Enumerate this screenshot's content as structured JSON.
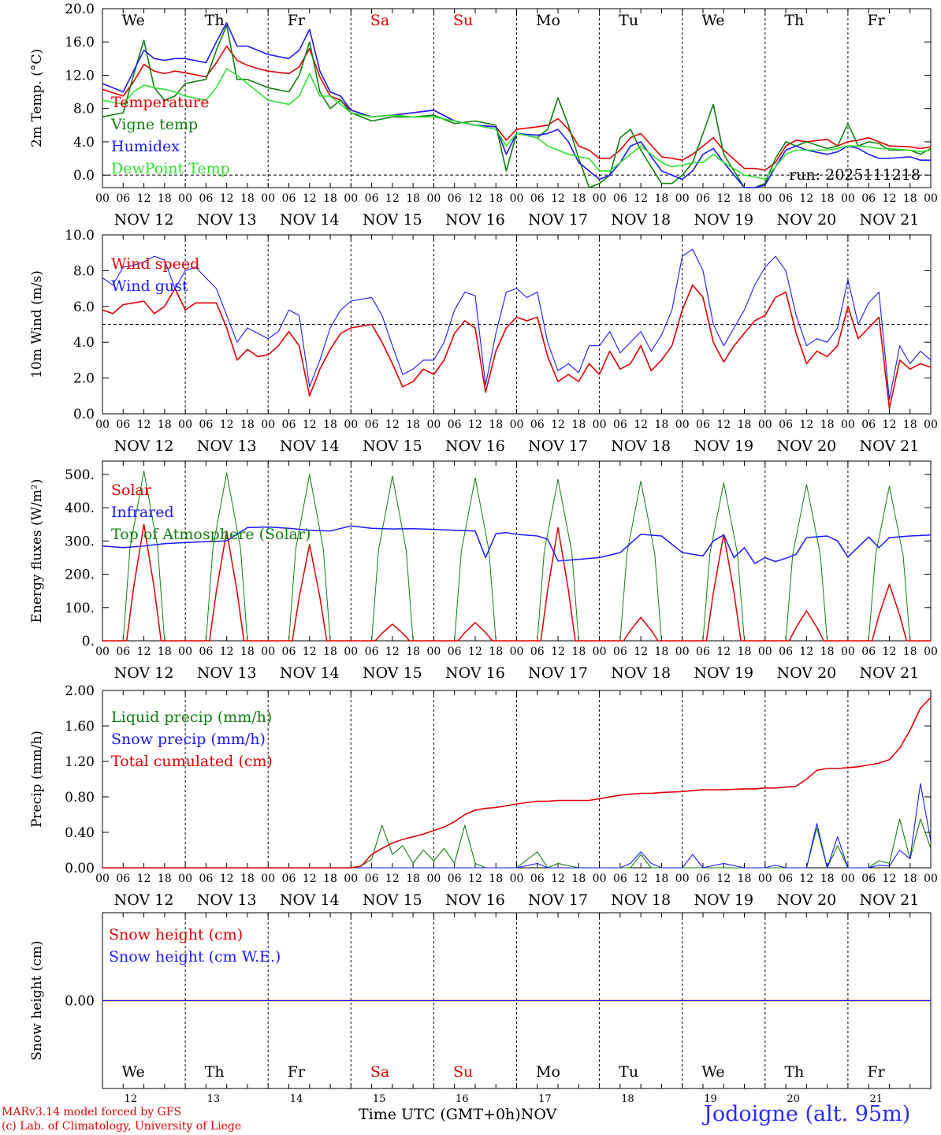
{
  "colors": {
    "red": "#e00000",
    "green": "#108010",
    "blue": "#1a1aff",
    "lightgreen": "#30e030",
    "black": "#000000"
  },
  "days": [
    "We",
    "Th",
    "Fr",
    "Sa",
    "Su",
    "Mo",
    "Tu",
    "We",
    "Th",
    "Fr"
  ],
  "weekend_days": [
    "Sa",
    "Su"
  ],
  "date_labels": [
    "NOV 12",
    "NOV 13",
    "NOV 14",
    "NOV 15",
    "NOV 16",
    "NOV 17",
    "NOV 18",
    "NOV 19",
    "NOV 20",
    "NOV 21"
  ],
  "hour_labels": [
    "00",
    "06",
    "12",
    "18"
  ],
  "day_numbers": [
    "12",
    "13",
    "14",
    "15",
    "16",
    "17",
    "18",
    "19",
    "20",
    "21"
  ],
  "footer": {
    "credit_line1": "MARv3.14 model forced by GFS",
    "credit_line2": "(c) Lab. of Climatology, University of Liege",
    "x_title": "Time UTC (GMT+0h)",
    "month": "NOV",
    "station": "Jodoigne (alt. 95m)"
  },
  "chart_data": [
    {
      "type": "line",
      "ylabel": "2m Temp. (°C)",
      "ylim": [
        -1.5,
        20.0
      ],
      "yticks": [
        0.0,
        4.0,
        8.0,
        12.0,
        16.0,
        20.0
      ],
      "ytick_labels": [
        "0.0",
        "4.0",
        "8.0",
        "12.0",
        "16.0",
        "20.0"
      ],
      "ref_line": 0.0,
      "annotation": "run: 2025111218",
      "x_hours": [
        0,
        6,
        9,
        12,
        15,
        18,
        21,
        24,
        30,
        33,
        36,
        39,
        42,
        45,
        48,
        54,
        57,
        60,
        63,
        66,
        69,
        72,
        78,
        84,
        90,
        96,
        102,
        108,
        114,
        117,
        120,
        126,
        129,
        132,
        135,
        138,
        141,
        144,
        147,
        150,
        153,
        156,
        162,
        165,
        168,
        171,
        174,
        177,
        180,
        186,
        189,
        192,
        195,
        198,
        201,
        204,
        210,
        213,
        216,
        219,
        222,
        225,
        228,
        234,
        237,
        240
      ],
      "series": [
        {
          "name": "Temperature",
          "color": "red",
          "values": [
            10.3,
            9.5,
            11.2,
            13.3,
            12.5,
            12.2,
            12.5,
            12.3,
            11.8,
            13.5,
            15.5,
            13.8,
            13.2,
            12.8,
            12.5,
            12.2,
            13.0,
            15.2,
            11.8,
            9.5,
            9.0,
            7.8,
            7.0,
            7.2,
            7.5,
            7.8,
            6.5,
            6.0,
            5.8,
            4.2,
            5.5,
            5.8,
            6.0,
            6.8,
            5.5,
            3.5,
            3.0,
            2.0,
            2.0,
            3.0,
            4.5,
            5.0,
            2.2,
            2.0,
            1.8,
            2.5,
            3.5,
            4.5,
            3.0,
            0.8,
            0.8,
            0.6,
            1.5,
            3.5,
            4.2,
            4.0,
            4.3,
            3.5,
            4.0,
            4.2,
            4.5,
            4.0,
            3.5,
            3.4,
            3.2,
            3.4
          ]
        },
        {
          "name": "Vigne temp",
          "color": "green",
          "values": [
            7.0,
            7.5,
            12.0,
            16.2,
            10.5,
            9.0,
            9.5,
            11.0,
            11.5,
            15.0,
            18.0,
            11.5,
            11.5,
            11.0,
            10.5,
            10.0,
            12.0,
            16.0,
            10.0,
            8.0,
            9.0,
            7.5,
            6.5,
            7.0,
            7.0,
            7.2,
            6.2,
            6.5,
            6.0,
            0.5,
            5.0,
            4.5,
            5.5,
            9.3,
            6.0,
            2.0,
            -1.5,
            -1.0,
            0.0,
            4.5,
            5.5,
            3.0,
            -1.0,
            -1.0,
            0.0,
            1.5,
            5.0,
            8.5,
            2.5,
            -1.5,
            -1.5,
            -1.0,
            2.0,
            4.0,
            3.5,
            4.0,
            3.2,
            3.5,
            6.2,
            3.5,
            4.0,
            3.8,
            3.0,
            3.0,
            2.5,
            3.2
          ]
        },
        {
          "name": "Humidex",
          "color": "blue",
          "values": [
            11.0,
            10.0,
            12.5,
            15.0,
            14.0,
            13.8,
            14.0,
            14.0,
            13.5,
            16.0,
            18.3,
            15.5,
            15.5,
            15.0,
            14.5,
            14.0,
            15.0,
            17.5,
            12.5,
            10.0,
            9.5,
            7.8,
            7.0,
            7.2,
            7.5,
            7.8,
            6.5,
            6.0,
            5.8,
            2.5,
            5.0,
            4.8,
            5.0,
            5.5,
            4.0,
            1.5,
            0.5,
            -0.5,
            0.0,
            1.5,
            3.5,
            4.0,
            0.5,
            0.0,
            -0.5,
            0.5,
            2.5,
            3.2,
            1.5,
            -1.5,
            -1.5,
            -1.2,
            1.0,
            3.0,
            3.5,
            3.0,
            2.5,
            2.8,
            3.5,
            3.2,
            2.5,
            2.0,
            2.0,
            2.2,
            1.8,
            1.8
          ]
        },
        {
          "name": "DewPoint Temp",
          "color": "lightgreen",
          "values": [
            9.0,
            8.5,
            10.0,
            10.8,
            10.5,
            10.3,
            10.0,
            9.5,
            9.0,
            10.5,
            12.8,
            12.0,
            11.0,
            10.0,
            9.0,
            8.5,
            9.5,
            12.2,
            9.5,
            9.5,
            8.5,
            7.5,
            7.0,
            7.2,
            7.0,
            7.0,
            6.5,
            6.0,
            5.5,
            3.5,
            5.0,
            4.5,
            3.5,
            3.0,
            2.5,
            2.2,
            2.0,
            0.5,
            0.5,
            1.5,
            2.5,
            3.5,
            1.5,
            1.0,
            1.2,
            1.5,
            1.5,
            2.5,
            1.5,
            0.0,
            -0.2,
            -0.5,
            1.0,
            2.5,
            3.0,
            3.0,
            3.0,
            3.2,
            3.5,
            3.5,
            3.4,
            3.2,
            3.2,
            3.0,
            2.8,
            3.0
          ]
        }
      ]
    },
    {
      "type": "line",
      "ylabel": "10m Wind (m/s)",
      "ylim": [
        0.0,
        10.0
      ],
      "yticks": [
        0.0,
        2.0,
        4.0,
        6.0,
        8.0,
        10.0
      ],
      "ytick_labels": [
        "0.0",
        "2.0",
        "4.0",
        "6.0",
        "8.0",
        "10.0"
      ],
      "ref_line": 5.0,
      "x_hours": [
        0,
        3,
        6,
        9,
        12,
        15,
        18,
        21,
        24,
        27,
        33,
        36,
        39,
        42,
        45,
        48,
        51,
        54,
        57,
        60,
        63,
        66,
        69,
        72,
        75,
        78,
        81,
        84,
        87,
        90,
        93,
        96,
        99,
        102,
        105,
        108,
        111,
        114,
        117,
        120,
        123,
        126,
        129,
        132,
        135,
        138,
        141,
        144,
        147,
        150,
        153,
        156,
        159,
        162,
        165,
        168,
        171,
        174,
        177,
        180,
        183,
        186,
        189,
        192,
        195,
        198,
        201,
        204,
        207,
        210,
        213,
        216,
        219,
        222,
        225,
        228,
        231,
        234,
        237,
        240
      ],
      "series": [
        {
          "name": "Wind speed",
          "color": "red",
          "values": [
            5.8,
            5.6,
            6.1,
            6.2,
            6.3,
            5.6,
            6.0,
            7.0,
            5.8,
            6.2,
            6.2,
            4.8,
            3.0,
            3.6,
            3.2,
            3.3,
            3.8,
            4.6,
            3.8,
            1.0,
            2.5,
            3.6,
            4.5,
            4.8,
            4.9,
            5.0,
            4.0,
            2.8,
            1.5,
            1.8,
            2.5,
            2.2,
            3.0,
            4.5,
            5.2,
            4.8,
            1.2,
            3.5,
            4.8,
            5.4,
            5.2,
            5.4,
            3.2,
            1.8,
            2.2,
            1.8,
            2.8,
            2.2,
            3.5,
            2.5,
            2.8,
            3.8,
            2.4,
            3.0,
            3.8,
            5.8,
            7.2,
            6.5,
            4.0,
            2.9,
            3.8,
            4.5,
            5.2,
            5.5,
            6.5,
            6.8,
            4.5,
            2.8,
            3.5,
            3.2,
            3.8,
            6.0,
            4.2,
            4.8,
            5.4,
            0.3,
            3.0,
            2.5,
            2.8,
            2.6
          ]
        },
        {
          "name": "Wind gust",
          "color": "blue",
          "values": [
            7.6,
            7.2,
            8.2,
            8.3,
            8.5,
            8.8,
            8.6,
            7.0,
            8.0,
            8.2,
            7.0,
            5.5,
            4.0,
            4.8,
            4.5,
            4.2,
            4.6,
            5.8,
            5.5,
            1.5,
            3.0,
            4.8,
            5.8,
            6.3,
            6.4,
            6.5,
            5.5,
            3.8,
            2.2,
            2.5,
            3.0,
            3.0,
            4.0,
            5.8,
            6.8,
            6.6,
            1.6,
            4.5,
            6.8,
            7.0,
            6.5,
            6.8,
            4.0,
            2.4,
            2.8,
            2.3,
            3.8,
            3.8,
            4.6,
            3.4,
            4.0,
            4.6,
            3.5,
            4.4,
            5.8,
            8.8,
            9.2,
            8.0,
            5.0,
            3.8,
            4.8,
            5.8,
            7.2,
            8.2,
            8.8,
            8.0,
            5.5,
            3.8,
            4.2,
            4.0,
            4.8,
            7.5,
            5.0,
            6.2,
            6.8,
            0.8,
            3.8,
            2.8,
            3.5,
            3.0
          ]
        }
      ]
    },
    {
      "type": "line",
      "ylabel": "Energy fluxes (W/m²)",
      "ylim": [
        0,
        540
      ],
      "yticks": [
        0,
        100,
        200,
        300,
        400,
        500
      ],
      "ytick_labels": [
        "0.",
        "100.",
        "200.",
        "300.",
        "400.",
        "500."
      ],
      "solar_peaks": {
        "center_hours": [
          12,
          36,
          60,
          84,
          108,
          132,
          156,
          180,
          204,
          228
        ],
        "peak_values": [
          350,
          330,
          290,
          50,
          55,
          340,
          70,
          320,
          90,
          170
        ],
        "toa_peak_values": [
          510,
          505,
          500,
          495,
          490,
          485,
          480,
          475,
          470,
          465
        ]
      },
      "infrared": {
        "x_hours": [
          0,
          6,
          12,
          18,
          24,
          30,
          36,
          42,
          48,
          54,
          60,
          66,
          72,
          78,
          84,
          90,
          96,
          102,
          108,
          111,
          114,
          117,
          120,
          126,
          129,
          132,
          138,
          144,
          150,
          156,
          162,
          168,
          174,
          177,
          180,
          183,
          186,
          189,
          192,
          195,
          198,
          201,
          204,
          210,
          213,
          216,
          222,
          225,
          228,
          234,
          240
        ],
        "values": [
          285,
          280,
          285,
          292,
          295,
          298,
          300,
          340,
          342,
          338,
          332,
          330,
          345,
          338,
          336,
          337,
          335,
          332,
          330,
          250,
          322,
          325,
          320,
          315,
          305,
          240,
          245,
          250,
          265,
          320,
          315,
          265,
          255,
          300,
          318,
          250,
          280,
          232,
          250,
          238,
          248,
          260,
          310,
          315,
          300,
          252,
          312,
          280,
          310,
          315,
          318
        ]
      },
      "series": [
        {
          "name": "Solar",
          "color": "red"
        },
        {
          "name": "Infrared",
          "color": "blue"
        },
        {
          "name": "Top of Atmosphere (Solar)",
          "color": "green"
        }
      ]
    },
    {
      "type": "line",
      "ylabel": "Precip (mm/h)",
      "ylim": [
        0.0,
        2.0
      ],
      "yticks": [
        0.0,
        0.4,
        0.8,
        1.2,
        1.6,
        2.0
      ],
      "ytick_labels": [
        "0.00",
        "0.40",
        "0.80",
        "1.20",
        "1.60",
        "2.00"
      ],
      "x_hours": [
        0,
        72,
        75,
        78,
        81,
        84,
        87,
        90,
        93,
        96,
        99,
        102,
        105,
        108,
        111,
        114,
        117,
        120,
        126,
        129,
        132,
        138,
        141,
        144,
        150,
        153,
        156,
        159,
        162,
        168,
        171,
        174,
        180,
        186,
        189,
        192,
        195,
        198,
        201,
        204,
        207,
        210,
        213,
        216,
        219,
        222,
        225,
        228,
        231,
        234,
        237,
        240
      ],
      "series": [
        {
          "name": "Liquid precip (mm/h)",
          "color": "green",
          "values": [
            0,
            0.0,
            0.02,
            0.1,
            0.48,
            0.15,
            0.25,
            0.05,
            0.2,
            0.08,
            0.22,
            0.05,
            0.48,
            0.05,
            0.0,
            0.0,
            0.0,
            0.0,
            0.18,
            0.0,
            0.05,
            0.0,
            0.0,
            0.0,
            0.0,
            0.0,
            0.15,
            0.0,
            0.0,
            0.0,
            0.0,
            0.0,
            0.0,
            0.0,
            0.0,
            0.0,
            0.0,
            0.0,
            0.0,
            0.0,
            0.45,
            0.0,
            0.25,
            0.0,
            0.0,
            0.0,
            0.08,
            0.05,
            0.55,
            0.1,
            0.55,
            0.22
          ]
        },
        {
          "name": "Snow precip (mm/h)",
          "color": "blue",
          "values": [
            0,
            0,
            0,
            0,
            0,
            0,
            0,
            0,
            0,
            0,
            0,
            0,
            0,
            0,
            0,
            0,
            0,
            0,
            0.05,
            0.0,
            0.0,
            0.0,
            0.0,
            0.0,
            0.0,
            0.05,
            0.18,
            0.05,
            0.0,
            0.0,
            0.15,
            0.0,
            0.05,
            0.0,
            0.0,
            0.0,
            0.03,
            0.0,
            0.0,
            0.0,
            0.5,
            0.0,
            0.35,
            0.0,
            0.0,
            0.0,
            0.03,
            0.02,
            0.2,
            0.1,
            0.95,
            0.3
          ]
        },
        {
          "name": "Total cumulated (cm)",
          "color": "red",
          "values": [
            0,
            0.0,
            0.02,
            0.15,
            0.22,
            0.28,
            0.32,
            0.35,
            0.38,
            0.42,
            0.46,
            0.52,
            0.6,
            0.65,
            0.67,
            0.68,
            0.7,
            0.72,
            0.75,
            0.75,
            0.76,
            0.76,
            0.76,
            0.78,
            0.82,
            0.83,
            0.84,
            0.84,
            0.85,
            0.86,
            0.87,
            0.88,
            0.88,
            0.89,
            0.89,
            0.9,
            0.9,
            0.91,
            0.92,
            1.0,
            1.1,
            1.12,
            1.12,
            1.13,
            1.14,
            1.16,
            1.18,
            1.22,
            1.35,
            1.55,
            1.8,
            1.92
          ]
        }
      ]
    },
    {
      "type": "line",
      "ylabel": "Snow height (cm)",
      "ylim": [
        -1.0,
        1.0
      ],
      "yticks": [
        0.0
      ],
      "ytick_labels": [
        "0.00"
      ],
      "x_hours": [
        0,
        240
      ],
      "series": [
        {
          "name": "Snow height (cm)",
          "color": "red",
          "values": [
            0.0,
            0.0
          ]
        },
        {
          "name": "Snow height (cm W.E.)",
          "color": "blue",
          "values": [
            0.0,
            0.0
          ]
        }
      ]
    }
  ]
}
